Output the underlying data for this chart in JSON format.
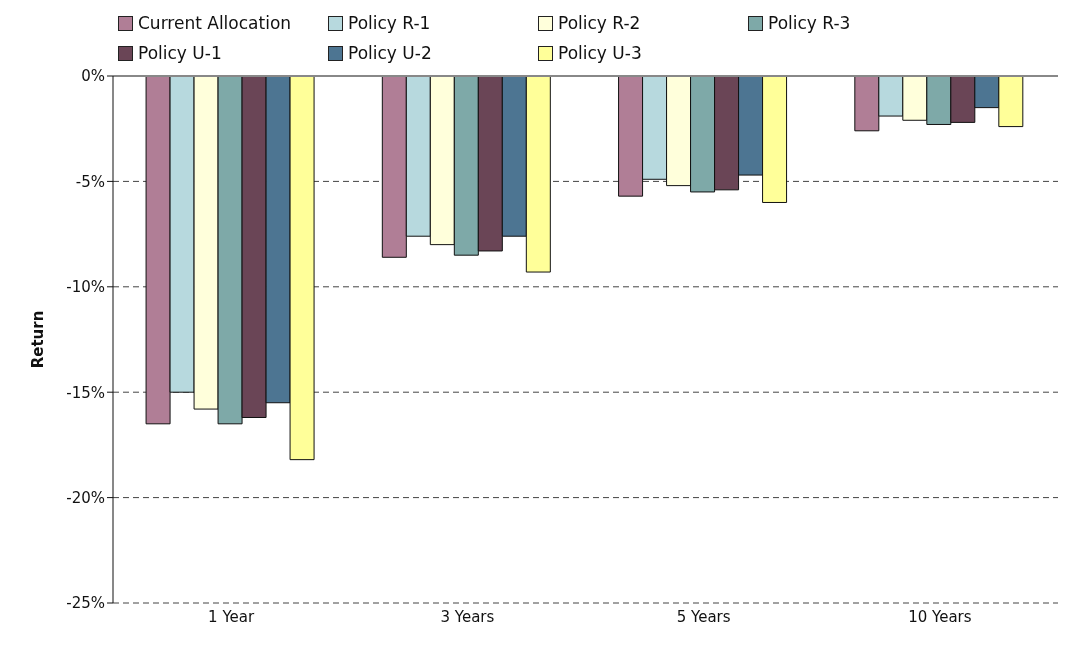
{
  "chart_data": {
    "type": "bar",
    "ylabel": "Return",
    "categories": [
      "1 Year",
      "3 Years",
      "5 Years",
      "10 Years"
    ],
    "series": [
      {
        "name": "Current Allocation",
        "color": "#b07e96",
        "values": [
          -16.5,
          -8.6,
          -5.7,
          -2.6
        ]
      },
      {
        "name": "Policy R-1",
        "color": "#b7d9de",
        "values": [
          -15.0,
          -7.6,
          -4.9,
          -1.9
        ]
      },
      {
        "name": "Policy R-2",
        "color": "#ffffdb",
        "values": [
          -15.8,
          -8.0,
          -5.2,
          -2.1
        ]
      },
      {
        "name": "Policy R-3",
        "color": "#7ea9a8",
        "values": [
          -16.5,
          -8.5,
          -5.5,
          -2.3
        ]
      },
      {
        "name": "Policy U-1",
        "color": "#6a4556",
        "values": [
          -16.2,
          -8.3,
          -5.4,
          -2.2
        ]
      },
      {
        "name": "Policy U-2",
        "color": "#4d7592",
        "values": [
          -15.5,
          -7.6,
          -4.7,
          -1.5
        ]
      },
      {
        "name": "Policy U-3",
        "color": "#ffff99",
        "values": [
          -18.2,
          -9.3,
          -6.0,
          -2.4
        ]
      }
    ],
    "ylim": [
      -25,
      0
    ],
    "yticks": [
      {
        "value": -25,
        "label": "-25%"
      },
      {
        "value": -20,
        "label": "-20%"
      },
      {
        "value": -15,
        "label": "-15%"
      },
      {
        "value": -10,
        "label": "-10%"
      },
      {
        "value": -5,
        "label": "-5%"
      },
      {
        "value": 0,
        "label": "0%"
      }
    ],
    "grid": "y",
    "legend": "top"
  }
}
